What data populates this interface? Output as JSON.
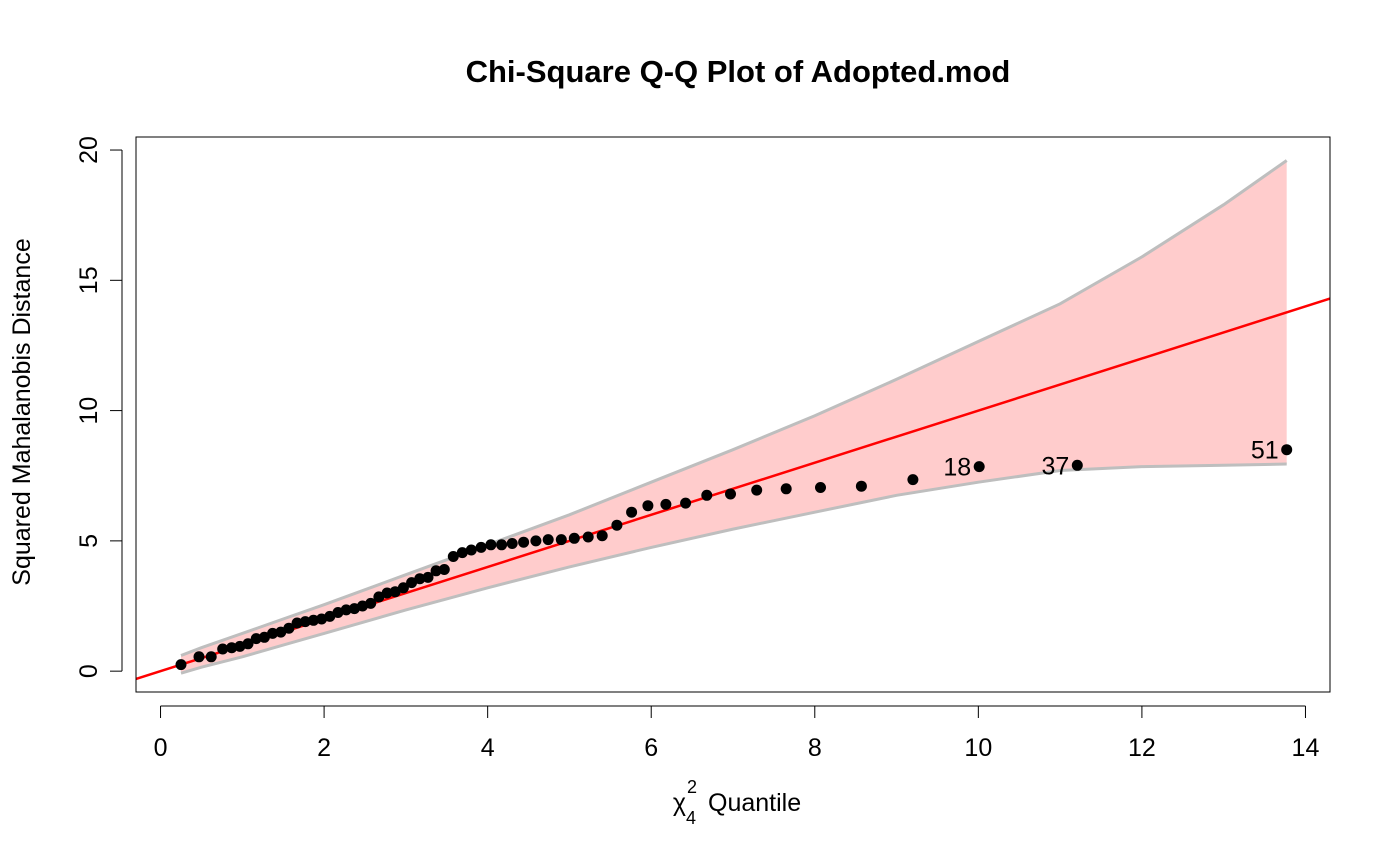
{
  "chart_data": {
    "type": "scatter",
    "title": "Chi-Square Q-Q Plot of Adopted.mod",
    "xlabel": {
      "symbol": "χ",
      "superscript": "2",
      "subscript": "4",
      "text": "Quantile"
    },
    "ylabel": "Squared Mahalanobis Distance",
    "xlim": [
      -0.3,
      14.3
    ],
    "ylim": [
      -0.8,
      20.5
    ],
    "x_ticks": [
      0,
      2,
      4,
      6,
      8,
      10,
      12,
      14
    ],
    "x_tick_labels": [
      "0",
      "2",
      "4",
      "6",
      "8",
      "10",
      "12",
      "14"
    ],
    "y_ticks": [
      0,
      5,
      10,
      15,
      20
    ],
    "y_tick_labels": [
      "0",
      "5",
      "10",
      "15",
      "20"
    ],
    "grid": false,
    "reference_line": {
      "intercept": 0,
      "slope": 1,
      "color": "#ff0000"
    },
    "envelope": {
      "fill_color": "#ffcccc",
      "border_color": "#bebebe",
      "x": [
        0.25,
        0.5,
        1.0,
        1.5,
        2.0,
        3.0,
        4.0,
        5.0,
        6.0,
        7.0,
        8.0,
        9.0,
        10.0,
        11.0,
        12.0,
        13.0,
        13.77
      ],
      "lower": [
        -0.08,
        0.15,
        0.55,
        1.0,
        1.45,
        2.35,
        3.2,
        4.0,
        4.75,
        5.45,
        6.1,
        6.75,
        7.25,
        7.7,
        7.85,
        7.9,
        7.95
      ],
      "upper": [
        0.6,
        0.9,
        1.45,
        2.0,
        2.55,
        3.7,
        4.85,
        6.0,
        7.25,
        8.5,
        9.8,
        11.2,
        12.65,
        14.1,
        15.9,
        17.9,
        19.6
      ]
    },
    "points": {
      "color": "#000000",
      "x": [
        0.25,
        0.47,
        0.62,
        0.76,
        0.87,
        0.97,
        1.07,
        1.17,
        1.27,
        1.37,
        1.47,
        1.57,
        1.67,
        1.77,
        1.87,
        1.97,
        2.07,
        2.17,
        2.27,
        2.37,
        2.47,
        2.57,
        2.67,
        2.77,
        2.87,
        2.97,
        3.07,
        3.17,
        3.27,
        3.37,
        3.47,
        3.58,
        3.69,
        3.8,
        3.92,
        4.04,
        4.17,
        4.3,
        4.44,
        4.59,
        4.74,
        4.9,
        5.06,
        5.23,
        5.4,
        5.58,
        5.76,
        5.96,
        6.18,
        6.42,
        6.68,
        6.97,
        7.29,
        7.65,
        8.07,
        8.57,
        9.2,
        10.01,
        11.21,
        13.77
      ],
      "y": [
        0.25,
        0.55,
        0.55,
        0.85,
        0.9,
        0.95,
        1.05,
        1.25,
        1.3,
        1.45,
        1.5,
        1.65,
        1.85,
        1.9,
        1.95,
        2.0,
        2.1,
        2.25,
        2.35,
        2.4,
        2.5,
        2.6,
        2.85,
        3.0,
        3.05,
        3.2,
        3.4,
        3.55,
        3.6,
        3.85,
        3.9,
        4.4,
        4.55,
        4.65,
        4.75,
        4.85,
        4.85,
        4.9,
        4.95,
        5.0,
        5.05,
        5.05,
        5.1,
        5.15,
        5.2,
        5.6,
        6.1,
        6.35,
        6.4,
        6.45,
        6.75,
        6.8,
        6.95,
        7.0,
        7.05,
        7.1,
        7.35,
        7.85,
        7.9,
        8.5
      ],
      "labels": [
        {
          "index": 57,
          "text": "18"
        },
        {
          "index": 58,
          "text": "37"
        },
        {
          "index": 59,
          "text": "51"
        }
      ]
    }
  }
}
